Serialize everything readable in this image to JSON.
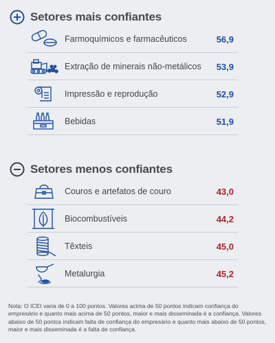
{
  "top_section": {
    "title": "Setores mais confiantes",
    "icon": "plus-circle-icon",
    "color": "#1f4fa0",
    "items": [
      {
        "label": "Farmoquímicos e farmacêuticos",
        "value": "56,9",
        "icon": "pills-icon"
      },
      {
        "label": "Extração de minerais não-metálicos",
        "value": "53,9",
        "icon": "bulldozer-icon"
      },
      {
        "label": "Impressão e reprodução",
        "value": "52,9",
        "icon": "paper-roll-icon"
      },
      {
        "label": "Bebidas",
        "value": "51,9",
        "icon": "bottle-crate-icon"
      }
    ]
  },
  "bottom_section": {
    "title": "Setores menos confiantes",
    "icon": "minus-circle-icon",
    "color": "#a8262c",
    "items": [
      {
        "label": "Couros e artefatos de couro",
        "value": "43,0",
        "icon": "handbag-icon"
      },
      {
        "label": "Biocombustíveis",
        "value": "44,2",
        "icon": "biofuel-leaf-icon"
      },
      {
        "label": "Têxteis",
        "value": "45,0",
        "icon": "thread-spool-icon"
      },
      {
        "label": "Metalurgia",
        "value": "45,2",
        "icon": "ladle-icon"
      }
    ]
  },
  "note": "Nota: O ICEI varia de 0 a 100 pontos. Valores acima de 50 pontos indicam confiança do empresário e quanto mais acima de 50 pontos, maior e mais disseminada é a confiança. Valores abaixo de 50 pontos indicam falta de confiança do empresário e quanto mais abaixo de 50 pontos, maior e mais disseminada é a falta de confiança."
}
